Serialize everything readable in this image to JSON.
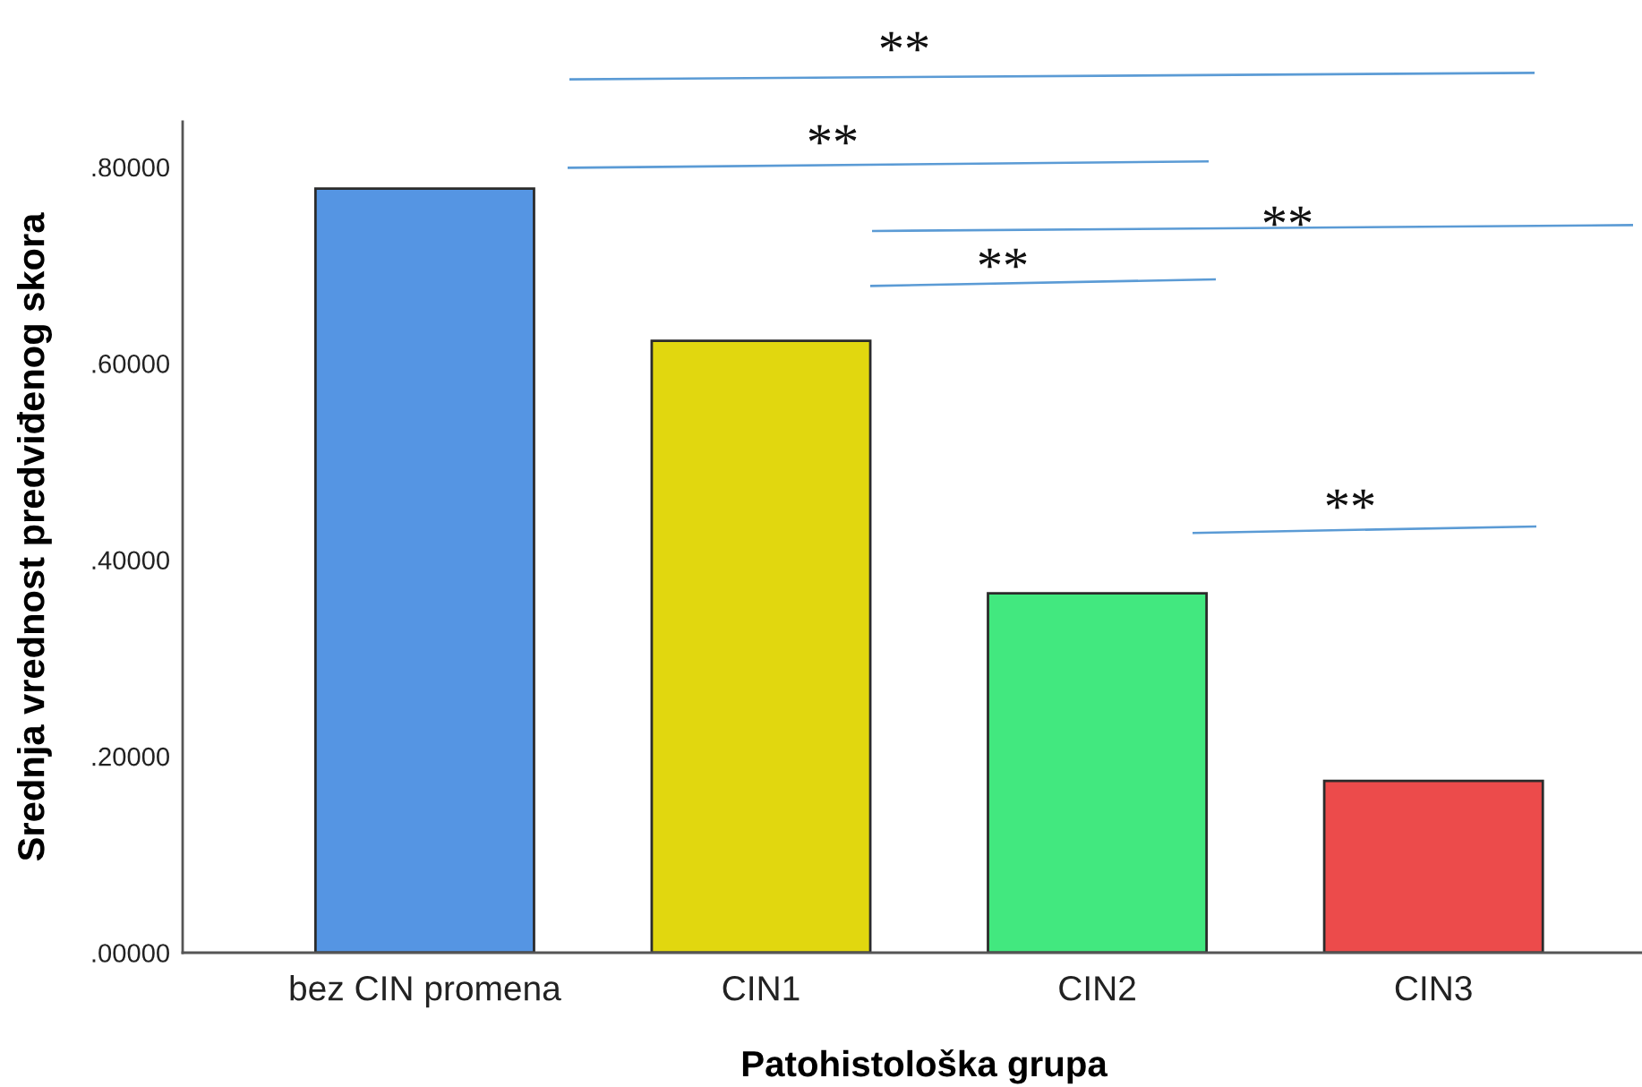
{
  "chart_data": {
    "type": "bar",
    "xlabel": "Patohistološka grupa",
    "ylabel": "Srednja vrednost predviđenog skora",
    "categories": [
      "bez CIN promena",
      "CIN1",
      "CIN2",
      "CIN3"
    ],
    "values": [
      0.778,
      0.623,
      0.366,
      0.175
    ],
    "colors": [
      "#5595e3",
      "#e1d70f",
      "#42e87f",
      "#ec4b4b"
    ],
    "ylim": [
      0,
      0.846
    ],
    "yticks": [
      {
        "value": 0,
        "label": ".00000"
      },
      {
        "value": 0.2,
        "label": ".20000"
      },
      {
        "value": 0.4,
        "label": ".40000"
      },
      {
        "value": 0.6,
        "label": ".60000"
      },
      {
        "value": 0.8,
        "label": ".80000"
      }
    ],
    "annotations": [
      "**",
      "**",
      "**",
      "**",
      "**"
    ]
  }
}
